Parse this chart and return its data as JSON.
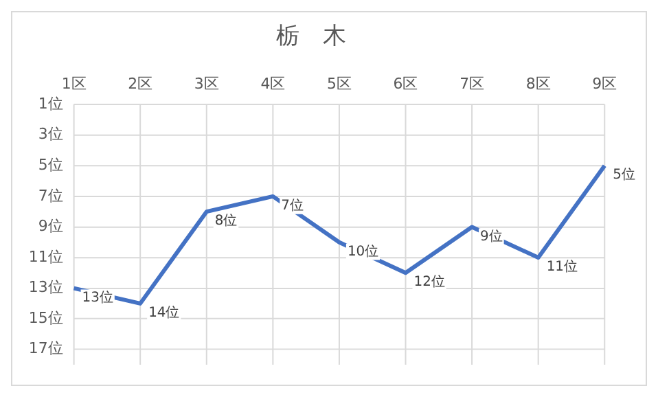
{
  "chart_data": {
    "type": "line",
    "title": "栃　木",
    "categories": [
      "1区",
      "2区",
      "3区",
      "4区",
      "5区",
      "6区",
      "7区",
      "8区",
      "9区"
    ],
    "series": [
      {
        "color": "#4472c4",
        "values": [
          13,
          14,
          8,
          7,
          10,
          12,
          9,
          11,
          5
        ],
        "value_labels": [
          "13位",
          "14位",
          "8位",
          "7位",
          "10位",
          "12位",
          "9位",
          "11位",
          "5位"
        ]
      }
    ],
    "ylim": [
      18,
      1
    ],
    "yticks": [
      {
        "value": 1,
        "label": "1位"
      },
      {
        "value": 3,
        "label": "3位"
      },
      {
        "value": 5,
        "label": "5位"
      },
      {
        "value": 7,
        "label": "7位"
      },
      {
        "value": 9,
        "label": "9位"
      },
      {
        "value": 11,
        "label": "11位"
      },
      {
        "value": 13,
        "label": "13位"
      },
      {
        "value": 15,
        "label": "15位"
      },
      {
        "value": 17,
        "label": "17位"
      }
    ],
    "grid": true,
    "legend": false,
    "marker": "none",
    "line_style": "solid"
  }
}
